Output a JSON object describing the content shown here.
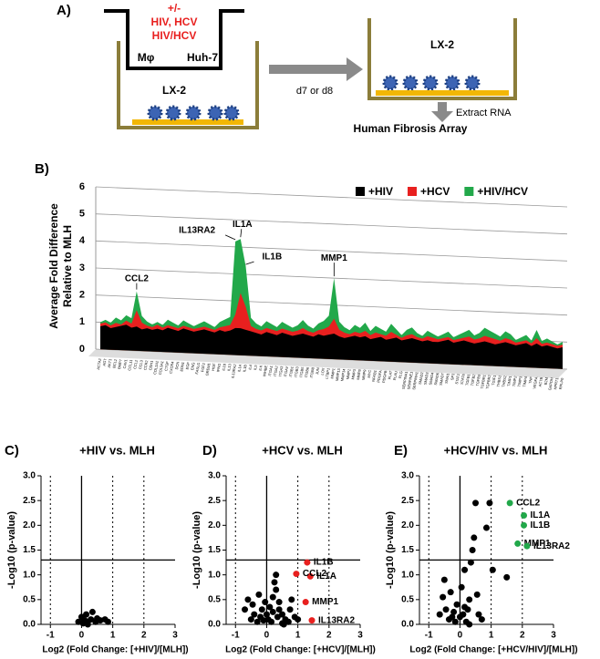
{
  "diagram": {
    "panel_label": "A)",
    "insert_lines": [
      "+/-",
      "HIV, HCV",
      "HIV/HCV"
    ],
    "insert_cells": [
      "Mφ",
      "Huh-7"
    ],
    "well_left": "LX-2",
    "arrow_label": "d7 or d8",
    "well_right": "LX-2",
    "step": "Extract RNA",
    "result": "Human Fibrosis Array"
  },
  "chart_data": [
    {
      "type": "area",
      "panel_label": "B)",
      "ylabel": [
        "Average Fold Difference",
        "Relative  to MLH"
      ],
      "categories": [
        "ACTA2",
        "AGT",
        "AKT1",
        "BCL2",
        "BMP7",
        "CAV1",
        "CCL11",
        "CCL2",
        "CCL3",
        "CCR2",
        "CDH1",
        "COL1A2",
        "COL3A1",
        "CTGF",
        "CXCR4",
        "DCN",
        "EDN1",
        "EGF",
        "ENG",
        "FASLG",
        "FGF2",
        "GREM1",
        "HGF",
        "IFNG",
        "IL10",
        "IL13",
        "IL13RA2",
        "IL1A",
        "IL1B",
        "IL4",
        "IL5",
        "ILK",
        "INHBE",
        "ITGA1",
        "ITGA2",
        "ITGA3",
        "ITGAV",
        "ITGB1",
        "ITGB3",
        "ITGB5",
        "ITGB6",
        "ITGB8",
        "JUN",
        "LOX",
        "LTBP1",
        "MMP1",
        "MMP13",
        "MMP14",
        "MMP2",
        "MMP3",
        "MMP8",
        "MMP9",
        "MYC",
        "NFKB1",
        "PDGFA",
        "PDGFB",
        "PLAT",
        "PLAU",
        "PLG",
        "SERPINA1",
        "SERPINE1",
        "SERPINH1",
        "SMAD2",
        "SMAD3",
        "SMAD4",
        "SMAD6",
        "SMAD7",
        "SNAI1",
        "SP1",
        "STAT1",
        "STAT6",
        "TGFB1",
        "TGFB2",
        "TGFB3",
        "TGFBR1",
        "TGFBR2",
        "TGIF1",
        "THBS1",
        "THBS2",
        "TIMP1",
        "TIMP2",
        "TIMP3",
        "TIMP4",
        "TNF",
        "VEGFA",
        "ACTB",
        "B2M",
        "GAPDH",
        "HPRT1",
        "RPLP0"
      ],
      "series": [
        {
          "name": "+HIV",
          "color": "#000000",
          "values": [
            0.85,
            0.9,
            0.8,
            0.85,
            0.9,
            0.95,
            0.85,
            0.9,
            0.8,
            0.85,
            0.8,
            0.85,
            0.8,
            0.9,
            0.85,
            0.8,
            0.9,
            0.85,
            0.8,
            0.85,
            0.9,
            0.85,
            0.8,
            0.9,
            0.85,
            0.9,
            1.0,
            1.0,
            0.95,
            0.9,
            0.85,
            0.8,
            0.9,
            0.85,
            0.8,
            0.9,
            0.85,
            0.8,
            0.85,
            0.9,
            0.85,
            0.8,
            0.9,
            0.85,
            0.9,
            0.95,
            0.85,
            0.8,
            0.85,
            0.9,
            0.85,
            0.9,
            0.8,
            0.85,
            0.9,
            0.8,
            0.85,
            0.9,
            0.8,
            0.85,
            0.9,
            0.85,
            0.8,
            0.85,
            0.8,
            0.8,
            0.85,
            0.9,
            0.8,
            0.85,
            0.9,
            0.85,
            0.8,
            0.85,
            0.9,
            0.85,
            0.8,
            0.85,
            0.9,
            0.85,
            0.8,
            0.85,
            0.9,
            0.8,
            0.9,
            0.8,
            0.85,
            0.8,
            0.75,
            0.8
          ]
        },
        {
          "name": "+HCV",
          "color": "#e8201f",
          "values": [
            0.95,
            1.0,
            0.9,
            1.0,
            0.95,
            1.1,
            1.0,
            1.5,
            1.05,
            0.95,
            0.9,
            1.0,
            0.9,
            1.0,
            0.95,
            0.9,
            1.0,
            0.95,
            0.9,
            0.95,
            1.0,
            0.95,
            0.9,
            1.0,
            1.05,
            1.1,
            1.5,
            2.3,
            1.8,
            1.1,
            1.0,
            0.95,
            1.05,
            1.0,
            0.95,
            1.05,
            1.0,
            0.95,
            1.0,
            1.1,
            1.0,
            0.95,
            1.05,
            1.1,
            1.2,
            1.5,
            1.1,
            1.0,
            0.95,
            1.05,
            1.0,
            1.1,
            0.95,
            1.05,
            1.0,
            0.95,
            1.1,
            1.0,
            0.9,
            1.0,
            1.05,
            0.95,
            0.9,
            1.0,
            0.95,
            0.9,
            0.95,
            1.0,
            0.9,
            0.95,
            1.0,
            1.05,
            0.95,
            1.0,
            1.1,
            1.05,
            1.0,
            0.95,
            1.05,
            1.0,
            0.9,
            0.95,
            1.0,
            0.9,
            1.1,
            0.9,
            0.95,
            0.9,
            0.85,
            0.9
          ]
        },
        {
          "name": "+HIV/HCV",
          "color": "#22a84a",
          "values": [
            1.0,
            1.1,
            1.0,
            1.2,
            1.1,
            1.3,
            1.2,
            2.2,
            1.3,
            1.1,
            1.0,
            1.1,
            1.0,
            1.2,
            1.1,
            1.0,
            1.2,
            1.1,
            1.0,
            1.1,
            1.2,
            1.1,
            1.0,
            1.2,
            1.3,
            1.4,
            4.2,
            4.3,
            3.3,
            1.4,
            1.2,
            1.1,
            1.3,
            1.2,
            1.1,
            1.3,
            1.2,
            1.1,
            1.2,
            1.4,
            1.2,
            1.1,
            1.3,
            1.4,
            1.6,
            3.0,
            1.4,
            1.2,
            1.1,
            1.3,
            1.2,
            1.4,
            1.1,
            1.3,
            1.2,
            1.1,
            1.4,
            1.2,
            1.0,
            1.2,
            1.3,
            1.1,
            1.0,
            1.2,
            1.1,
            1.0,
            1.1,
            1.2,
            1.0,
            1.1,
            1.2,
            1.3,
            1.1,
            1.2,
            1.4,
            1.3,
            1.2,
            1.1,
            1.3,
            1.2,
            1.0,
            1.1,
            1.2,
            1.0,
            1.4,
            1.0,
            1.1,
            1.0,
            0.9,
            1.0
          ]
        }
      ],
      "ylim": [
        0,
        6
      ],
      "yticks": [
        0,
        1,
        2,
        3,
        4,
        5,
        6
      ],
      "grid": true,
      "legend": "top-right",
      "annotations": [
        "CCL2",
        "IL13RA2",
        "IL1A",
        "IL1B",
        "MMP1"
      ]
    },
    {
      "type": "scatter",
      "panel_label": "C)",
      "title": "+HIV vs. MLH",
      "xlabel": "Log2 (Fold Change: [+HIV]/[MLH])",
      "ylabel": "-Log10 (p-value)",
      "xlim": [
        -1.3,
        3
      ],
      "xticks": [
        -1,
        0,
        1,
        2,
        3
      ],
      "ylim": [
        0,
        3
      ],
      "yticks": [
        {
          "value": 0,
          "label": "0.0"
        },
        {
          "value": 0.5,
          "label": "0.5"
        },
        {
          "value": 1,
          "label": "1.0"
        },
        {
          "value": 1.5,
          "label": "1.5"
        },
        {
          "value": 2,
          "label": "2.0"
        },
        {
          "value": 2.5,
          "label": "2.5"
        },
        {
          "value": 3,
          "label": "3.0"
        }
      ],
      "reference_lines": {
        "x_solid": [
          0
        ],
        "x_dotted": [
          -1,
          1,
          2
        ],
        "y_solid": [
          1.3
        ]
      },
      "series": [
        {
          "color": "#000000",
          "x": [
            -0.1,
            0.0,
            0.05,
            0.1,
            0.15,
            0.2,
            0.3,
            0.35,
            0.45,
            0.5,
            0.6,
            0.75,
            0.85,
            0.2
          ],
          "y": [
            0.05,
            0.15,
            0.02,
            0.08,
            0.2,
            0.05,
            0.1,
            0.25,
            0.05,
            0.12,
            0.08,
            0.1,
            0.05,
            0.0
          ]
        }
      ]
    },
    {
      "type": "scatter",
      "panel_label": "D)",
      "title": "+HCV  vs. MLH",
      "xlabel": "Log2 (Fold Change: [+HCV]/[MLH])",
      "ylabel": "-Log10 (p-value)",
      "xlim": [
        -1.3,
        3
      ],
      "xticks": [
        -1,
        0,
        1,
        2,
        3
      ],
      "ylim": [
        0,
        3
      ],
      "yticks": [
        {
          "value": 0,
          "label": "0.0"
        },
        {
          "value": 0.5,
          "label": "0.5"
        },
        {
          "value": 1,
          "label": "1.0"
        },
        {
          "value": 1.5,
          "label": "1.5"
        },
        {
          "value": 2,
          "label": "2.0"
        },
        {
          "value": 2.5,
          "label": "2.5"
        },
        {
          "value": 3,
          "label": "3.0"
        }
      ],
      "reference_lines": {
        "x_solid": [
          0
        ],
        "x_dotted": [
          -1,
          1,
          2
        ],
        "y_solid": [
          1.3
        ]
      },
      "series": [
        {
          "color": "#000000",
          "x": [
            -0.7,
            -0.6,
            -0.5,
            -0.45,
            -0.4,
            -0.3,
            -0.25,
            -0.2,
            -0.15,
            -0.1,
            -0.05,
            0,
            0.05,
            0.1,
            0.15,
            0.2,
            0.25,
            0.3,
            0.35,
            0.4,
            0.5,
            0.55,
            0.6,
            0.7,
            0.75,
            0.8,
            0.9,
            1.0,
            0.2,
            0.3,
            0.4,
            0.5
          ],
          "y": [
            0.3,
            0.5,
            0.1,
            0.4,
            0.2,
            0.05,
            0.6,
            0.15,
            0.3,
            0.08,
            0.45,
            0.2,
            0.1,
            0.35,
            0.05,
            0.55,
            0.85,
            1.0,
            0.15,
            0.3,
            0.2,
            0.0,
            0.1,
            0.05,
            0.3,
            0.5,
            0.15,
            0.1,
            0.25,
            0.7,
            0.45,
            0.02
          ]
        },
        {
          "color": "#e8201f",
          "x": [
            1.3,
            1.4,
            0.95,
            1.25,
            1.45
          ],
          "y": [
            1.25,
            0.97,
            1.02,
            0.45,
            0.08
          ],
          "labels": [
            "IL1B",
            "IL1A",
            "CCL2",
            "MMP1",
            "IL13RA2"
          ]
        }
      ]
    },
    {
      "type": "scatter",
      "panel_label": "E)",
      "title": "+HCV/HIV vs. MLH",
      "xlabel": "Log2 (Fold Change: [+HCV/HIV]/[MLH])",
      "ylabel": "-Log10 (p-value)",
      "xlim": [
        -1.3,
        3
      ],
      "xticks": [
        -1,
        0,
        1,
        2,
        3
      ],
      "ylim": [
        0,
        3
      ],
      "yticks": [
        {
          "value": 0,
          "label": "0.0"
        },
        {
          "value": 0.5,
          "label": "0.5"
        },
        {
          "value": 1,
          "label": "1.0"
        },
        {
          "value": 1.5,
          "label": "1.5"
        },
        {
          "value": 2,
          "label": "2.0"
        },
        {
          "value": 2.5,
          "label": "2.5"
        },
        {
          "value": 3,
          "label": "3.0"
        }
      ],
      "reference_lines": {
        "x_solid": [
          0
        ],
        "x_dotted": [
          -1,
          1,
          2
        ],
        "y_solid": [
          1.3
        ]
      },
      "series": [
        {
          "color": "#000000",
          "x": [
            -0.65,
            -0.55,
            -0.5,
            -0.45,
            -0.35,
            -0.3,
            -0.2,
            -0.15,
            -0.1,
            0,
            0.05,
            0.1,
            0.15,
            0.2,
            0.25,
            0.3,
            0.35,
            0.4,
            0.45,
            0.5,
            0.6,
            0.7,
            0.85,
            0.95,
            1.05,
            1.5,
            0.15,
            -0.25,
            0.3,
            0.55
          ],
          "y": [
            0.2,
            0.55,
            0.9,
            0.3,
            0.1,
            0.65,
            0.25,
            0.05,
            0.4,
            0.15,
            0.75,
            0.2,
            1.1,
            0.05,
            0.3,
            0.5,
            1.25,
            1.5,
            1.75,
            2.45,
            0.2,
            0.1,
            1.95,
            2.45,
            1.1,
            0.95,
            0.35,
            0.15,
            0.0,
            0.6
          ]
        },
        {
          "color": "#22a84a",
          "x": [
            1.6,
            2.05,
            2.05,
            1.85,
            2.15
          ],
          "y": [
            2.45,
            2.2,
            2.0,
            1.63,
            1.58
          ],
          "labels": [
            "CCL2",
            "IL1A",
            "IL1B",
            "MMP1",
            "IL13RA2"
          ]
        }
      ]
    }
  ]
}
